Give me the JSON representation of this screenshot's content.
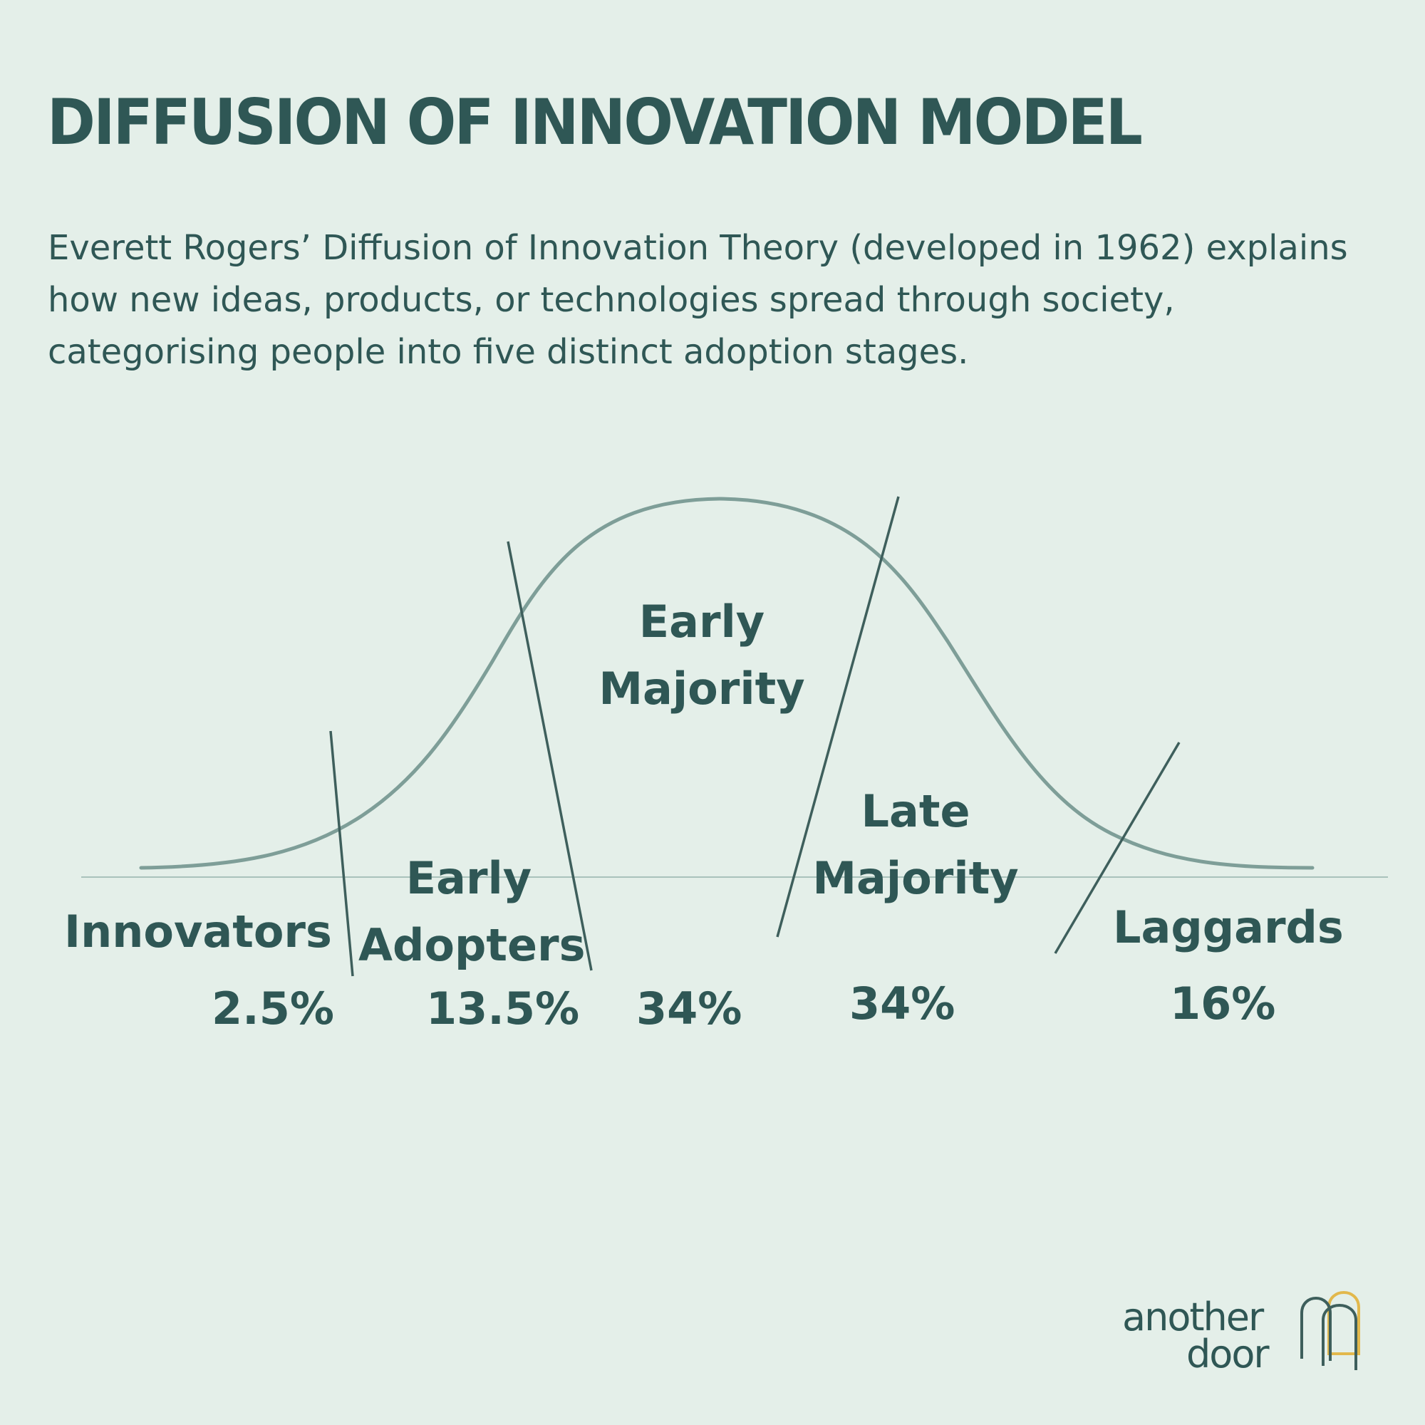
{
  "title": "DIFFUSION OF INNOVATION MODEL",
  "intro": {
    "line1": "Everett Rogers’ Diffusion of Innovation Theory (developed in 1962) explains",
    "line2": "how new ideas, products, or technologies spread through society,",
    "line3": "categorising people into five distinct adoption stages."
  },
  "chart_data": {
    "type": "bell-curve",
    "segments": [
      {
        "name": "Innovators",
        "percent": "2.5%"
      },
      {
        "name_line1": "Early",
        "name_line2": "Adopters",
        "percent": "13.5%"
      },
      {
        "name_line1": "Early",
        "name_line2": "Majority",
        "percent": "34%"
      },
      {
        "name_line1": "Late",
        "name_line2": "Majority",
        "percent": "34%"
      },
      {
        "name": "Laggards",
        "percent": "16%"
      }
    ]
  },
  "logo": {
    "line1": "another",
    "line2": "door"
  },
  "colors": {
    "background": "#e4efe9",
    "text": "#2f5755",
    "curve": "#7e9e98",
    "accent": "#e2b84c"
  }
}
